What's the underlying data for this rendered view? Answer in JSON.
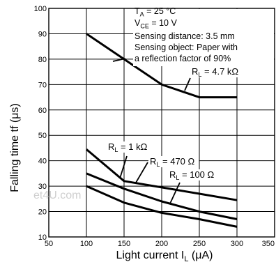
{
  "chart_data": {
    "type": "line",
    "xlabel": "Light current  I",
    "xlabel_sub": "L",
    "xlabel_unit": " (μA)",
    "ylabel": "Falling time  tf (μs)",
    "xlim": [
      50,
      350
    ],
    "ylim": [
      10,
      100
    ],
    "x_ticks": [
      50,
      100,
      150,
      200,
      250,
      300,
      350
    ],
    "x_tick_labels": [
      "50",
      "100",
      "150",
      "200",
      "250",
      "300",
      "350"
    ],
    "y_ticks": [
      10,
      20,
      30,
      40,
      50,
      60,
      70,
      80,
      90,
      100
    ],
    "y_tick_labels": [
      "10",
      "20",
      "30",
      "40",
      "50",
      "60",
      "70",
      "80",
      "90",
      "100"
    ],
    "grid": true,
    "conditions": [
      {
        "main": "T",
        "sub": "A",
        "rest": " = 25  °C"
      },
      {
        "main": "V",
        "sub": "CE",
        "rest": " = 10 V"
      },
      {
        "main": "Sensing distance: 3.5 mm",
        "sub": "",
        "rest": ""
      },
      {
        "main": "Sensing object: Paper with",
        "sub": "",
        "rest": ""
      },
      {
        "main": "a reflection factor of 90%",
        "sub": "",
        "rest": ""
      }
    ],
    "series": [
      {
        "label_main": "R",
        "label_sub": "L",
        "label_rest": " = 4.7 kΩ",
        "x": [
          100,
          150,
          200,
          250,
          300
        ],
        "y": [
          90,
          80,
          70,
          65,
          65
        ]
      },
      {
        "label_main": "R",
        "label_sub": "L",
        "label_rest": " = 1 kΩ",
        "x": [
          100,
          150,
          200,
          250,
          300
        ],
        "y": [
          44.5,
          32,
          29.5,
          27,
          24.5
        ]
      },
      {
        "label_main": "R",
        "label_sub": "L",
        "label_rest": " = 470 Ω",
        "x": [
          100,
          150,
          200,
          250,
          300
        ],
        "y": [
          35,
          29,
          24,
          20,
          17
        ]
      },
      {
        "label_main": "R",
        "label_sub": "L",
        "label_rest": " = 100 Ω",
        "x": [
          100,
          150,
          200,
          250,
          300
        ],
        "y": [
          30,
          23.5,
          19.5,
          17,
          14
        ]
      }
    ]
  },
  "watermark": "et4U.com"
}
